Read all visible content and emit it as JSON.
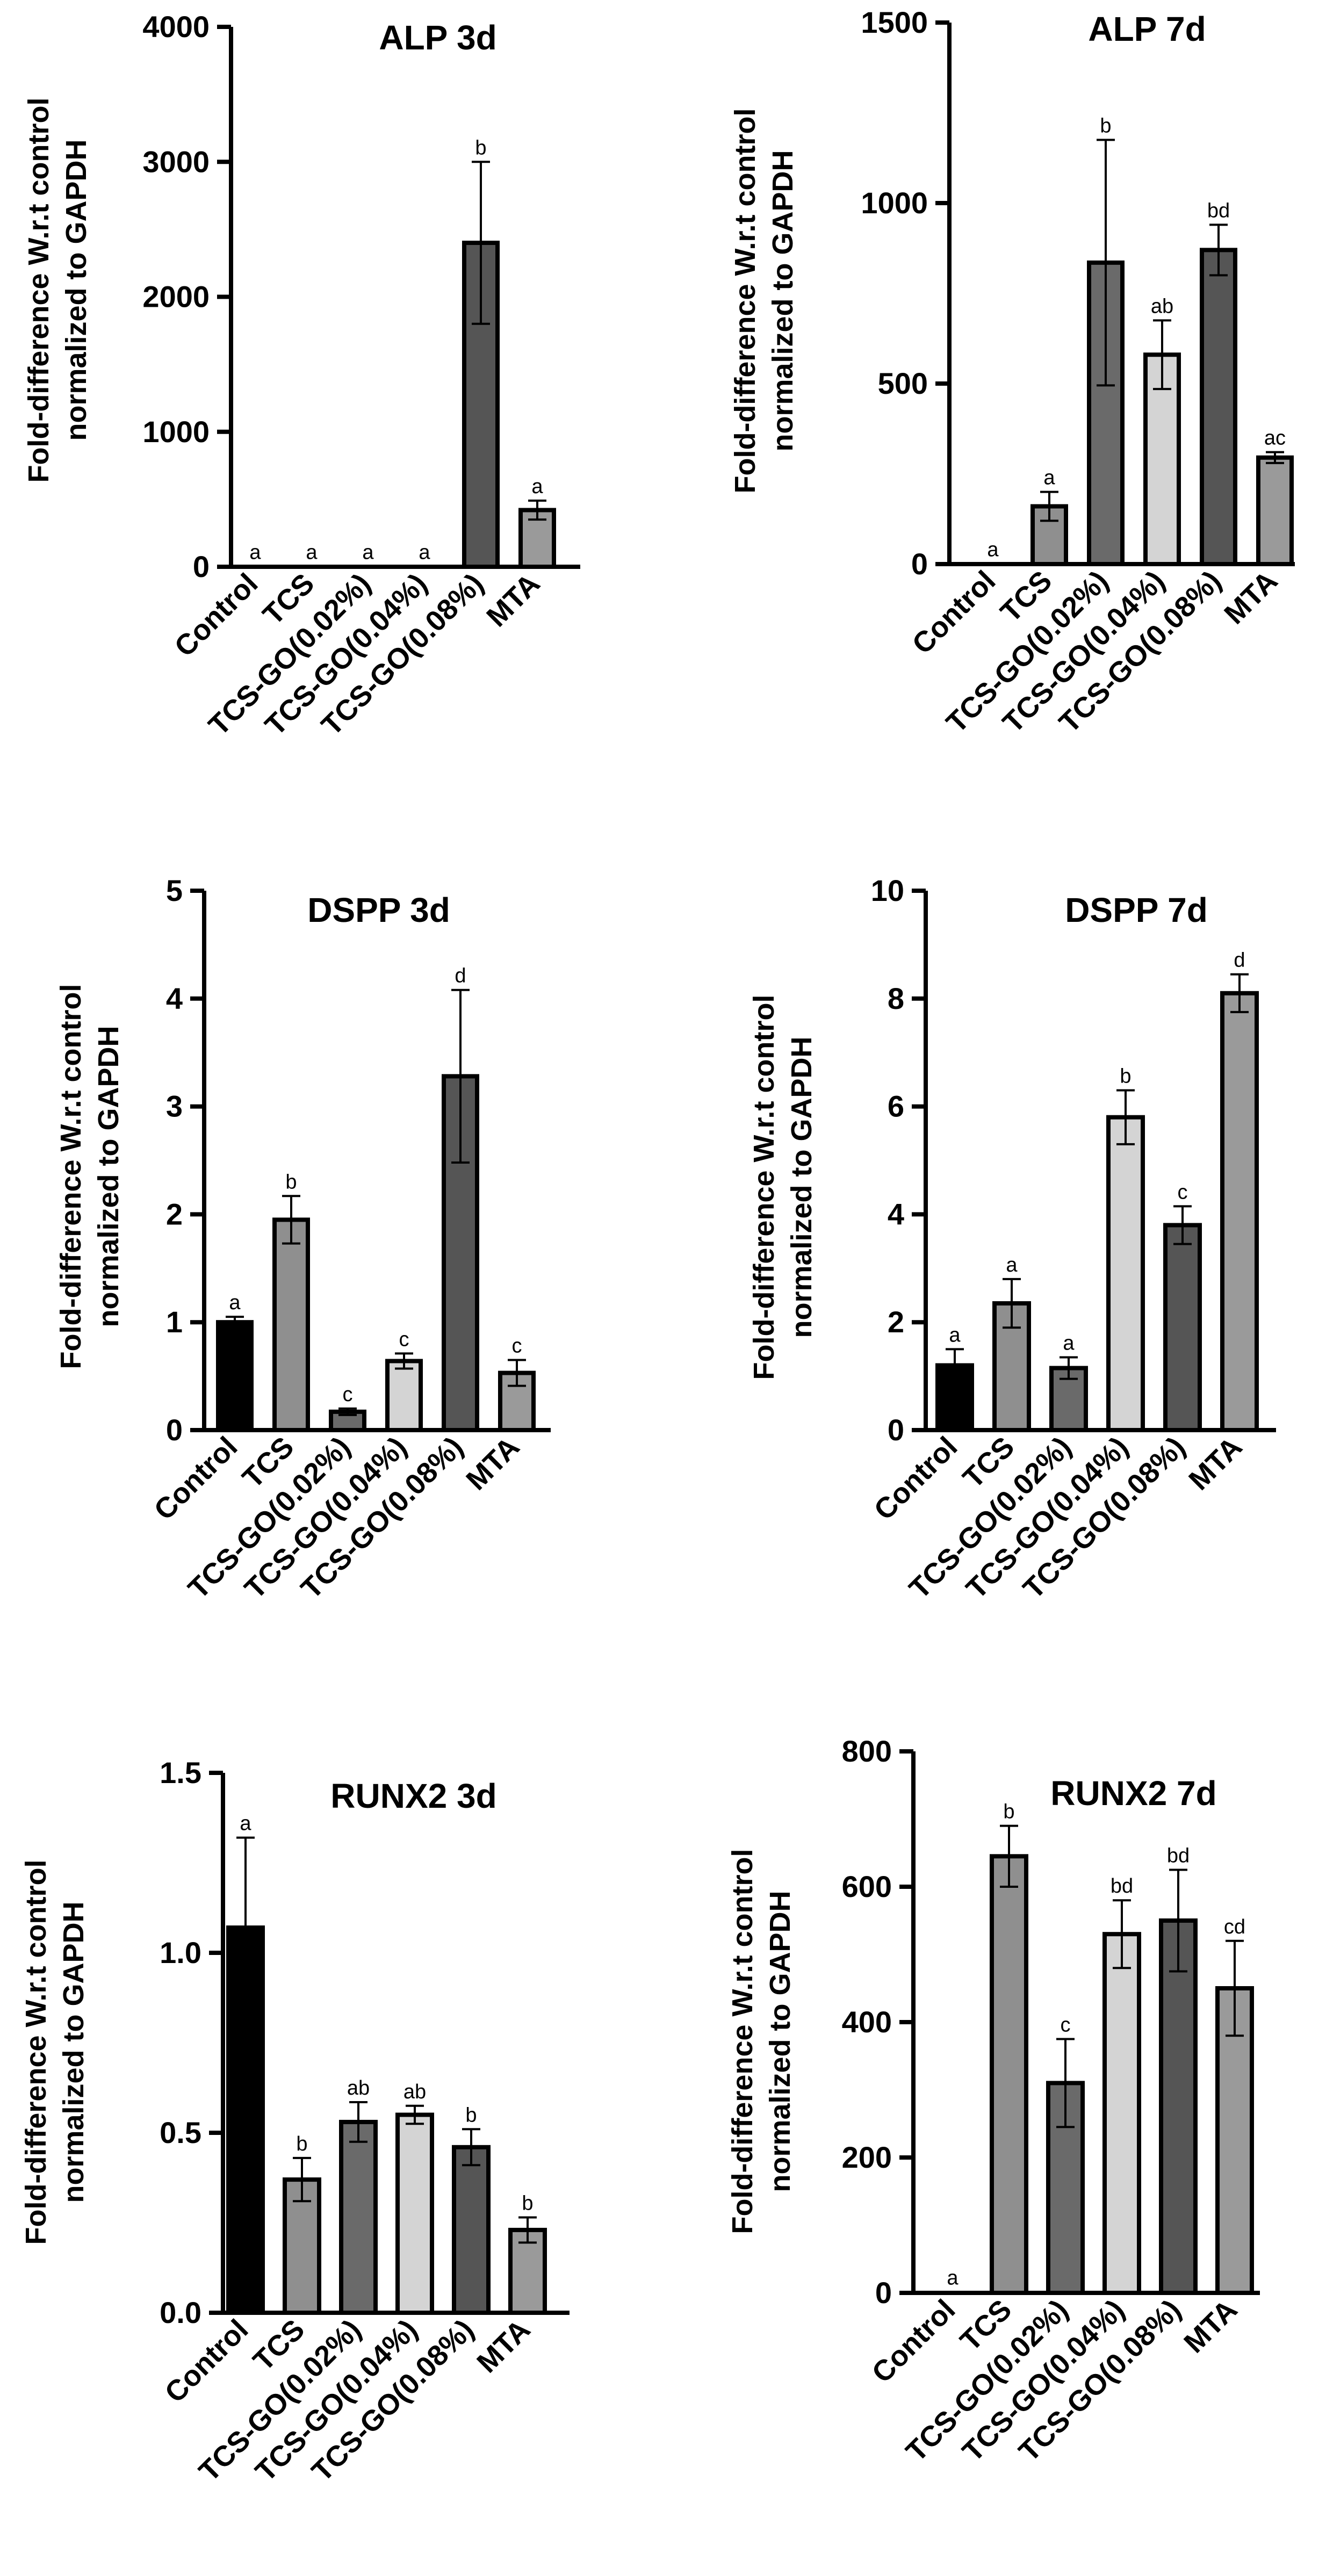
{
  "figure": {
    "ylabel_line1": "Fold-difference W.r.t control",
    "ylabel_line2": "normalized to GAPDH"
  },
  "colors": {
    "Control": "#000000",
    "TCS": "#8f8f8f",
    "TCS-GO(0.02%)": "#6a6a6a",
    "TCS-GO(0.04%)": "#d4d4d4",
    "TCS-GO(0.08%)": "#555555",
    "MTA": "#9a9a9a"
  },
  "chart_data": [
    {
      "type": "bar",
      "title": "ALP 3d",
      "xlabel": "",
      "ylabel": "Fold-difference W.r.t control normalized to GAPDH",
      "categories": [
        "Control",
        "TCS",
        "TCS-GO(0.02%)",
        "TCS-GO(0.04%)",
        "TCS-GO(0.08%)",
        "MTA"
      ],
      "values": [
        1,
        1,
        1,
        1,
        2400,
        420
      ],
      "errors": [
        0,
        0,
        0,
        0,
        600,
        70
      ],
      "significance": [
        "a",
        "a",
        "a",
        "a",
        "b",
        "a"
      ],
      "ylim": [
        0,
        4000
      ],
      "yticks": [
        0,
        1000,
        2000,
        3000,
        4000
      ],
      "ytick_labels": [
        "0",
        "1000",
        "2000",
        "3000",
        "4000"
      ]
    },
    {
      "type": "bar",
      "title": "ALP 7d",
      "xlabel": "",
      "ylabel": "Fold-difference W.r.t control normalized to GAPDH",
      "categories": [
        "Control",
        "TCS",
        "TCS-GO(0.02%)",
        "TCS-GO(0.04%)",
        "TCS-GO(0.08%)",
        "MTA"
      ],
      "values": [
        1,
        160,
        835,
        580,
        870,
        295
      ],
      "errors": [
        0,
        40,
        340,
        95,
        70,
        15
      ],
      "significance": [
        "a",
        "a",
        "b",
        "ab",
        "bd",
        "ac"
      ],
      "ylim": [
        0,
        1500
      ],
      "yticks": [
        0,
        500,
        1000,
        1500
      ],
      "ytick_labels": [
        "0",
        "500",
        "1000",
        "1500"
      ]
    },
    {
      "type": "bar",
      "title": "DSPP 3d",
      "xlabel": "",
      "ylabel": "Fold-difference W.r.t control normalized to GAPDH",
      "categories": [
        "Control",
        "TCS",
        "TCS-GO(0.02%)",
        "TCS-GO(0.04%)",
        "TCS-GO(0.08%)",
        "MTA"
      ],
      "values": [
        1.0,
        1.95,
        0.17,
        0.64,
        3.28,
        0.53
      ],
      "errors": [
        0.05,
        0.22,
        0.03,
        0.07,
        0.8,
        0.12
      ],
      "significance": [
        "a",
        "b",
        "c",
        "c",
        "d",
        "c"
      ],
      "ylim": [
        0,
        5
      ],
      "yticks": [
        0,
        1,
        2,
        3,
        4,
        5
      ],
      "ytick_labels": [
        "0",
        "1",
        "2",
        "3",
        "4",
        "5"
      ]
    },
    {
      "type": "bar",
      "title": "DSPP 7d",
      "xlabel": "",
      "ylabel": "Fold-difference W.r.t control normalized to GAPDH",
      "categories": [
        "Control",
        "TCS",
        "TCS-GO(0.02%)",
        "TCS-GO(0.04%)",
        "TCS-GO(0.08%)",
        "MTA"
      ],
      "values": [
        1.2,
        2.35,
        1.15,
        5.8,
        3.8,
        8.1
      ],
      "errors": [
        0.3,
        0.45,
        0.2,
        0.5,
        0.35,
        0.35
      ],
      "significance": [
        "a",
        "a",
        "a",
        "b",
        "c",
        "d"
      ],
      "ylim": [
        0,
        10
      ],
      "yticks": [
        0,
        2,
        4,
        6,
        8,
        10
      ],
      "ytick_labels": [
        "0",
        "2",
        "4",
        "6",
        "8",
        "10"
      ]
    },
    {
      "type": "bar",
      "title": "RUNX2 3d",
      "xlabel": "",
      "ylabel": "Fold-difference W.r.t control normalized to GAPDH",
      "categories": [
        "Control",
        "TCS",
        "TCS-GO(0.02%)",
        "TCS-GO(0.04%)",
        "TCS-GO(0.08%)",
        "MTA"
      ],
      "values": [
        1.07,
        0.37,
        0.53,
        0.55,
        0.46,
        0.23
      ],
      "errors": [
        0.25,
        0.06,
        0.055,
        0.025,
        0.05,
        0.035
      ],
      "significance": [
        "a",
        "b",
        "ab",
        "ab",
        "b",
        "b"
      ],
      "ylim": [
        0,
        1.5
      ],
      "yticks": [
        0,
        0.5,
        1.0,
        1.5
      ],
      "ytick_labels": [
        "0.0",
        "0.5",
        "1.0",
        "1.5"
      ]
    },
    {
      "type": "bar",
      "title": "RUNX2 7d",
      "xlabel": "",
      "ylabel": "Fold-difference W.r.t control normalized to GAPDH",
      "categories": [
        "Control",
        "TCS",
        "TCS-GO(0.02%)",
        "TCS-GO(0.04%)",
        "TCS-GO(0.08%)",
        "MTA"
      ],
      "values": [
        1,
        645,
        310,
        530,
        550,
        450
      ],
      "errors": [
        0,
        45,
        65,
        50,
        75,
        70
      ],
      "significance": [
        "a",
        "b",
        "c",
        "bd",
        "bd",
        "cd"
      ],
      "ylim": [
        0,
        800
      ],
      "yticks": [
        0,
        200,
        400,
        600,
        800
      ],
      "ytick_labels": [
        "0",
        "200",
        "400",
        "600",
        "800"
      ]
    }
  ]
}
